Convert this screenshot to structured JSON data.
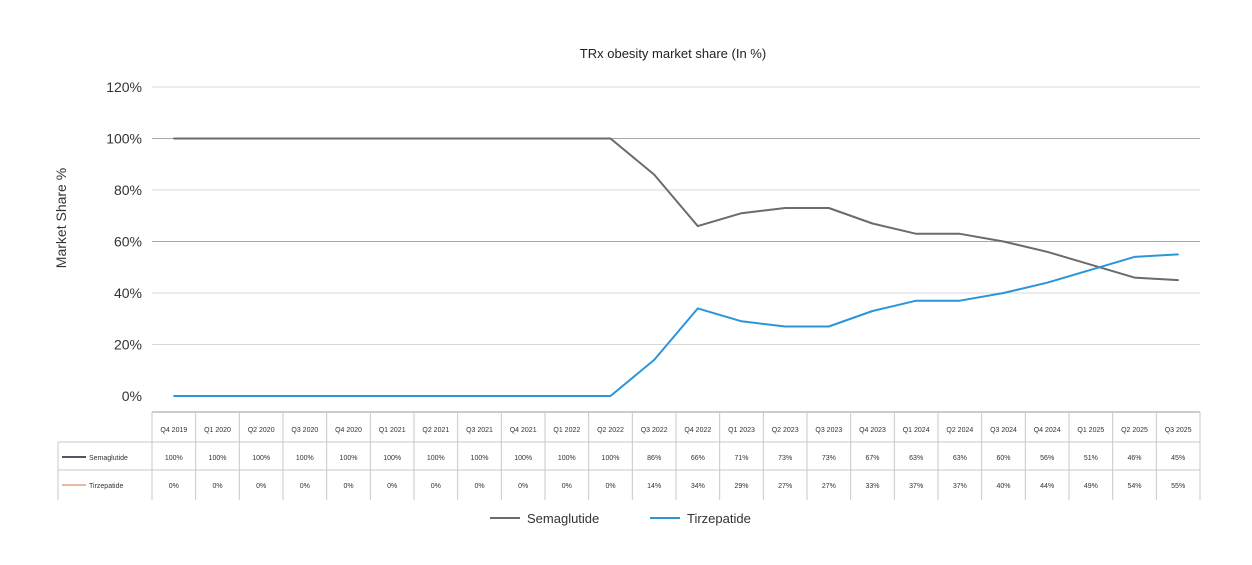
{
  "chart_data": {
    "type": "line",
    "title": "TRx obesity market share (In %)",
    "ylabel": "Market Share %",
    "xlabel": "",
    "ylim": [
      0,
      120
    ],
    "yticks": [
      "0%",
      "20%",
      "40%",
      "60%",
      "80%",
      "100%",
      "120%"
    ],
    "yticks_values": [
      0,
      20,
      40,
      60,
      80,
      100,
      120
    ],
    "grid": true,
    "legend_position": "bottom",
    "categories": [
      "Q4 2019",
      "Q1 2020",
      "Q2 2020",
      "Q3 2020",
      "Q4 2020",
      "Q1 2021",
      "Q2 2021",
      "Q3 2021",
      "Q4 2021",
      "Q1 2022",
      "Q2 2022",
      "Q3 2022",
      "Q4 2022",
      "Q1 2023",
      "Q2 2023",
      "Q3 2023",
      "Q4 2023",
      "Q1 2024",
      "Q2 2024",
      "Q3 2024",
      "Q4 2024",
      "Q1 2025",
      "Q2 2025",
      "Q3 2025"
    ],
    "series": [
      {
        "name": "Semaglutide",
        "color": "#6b6b6b",
        "values": [
          100,
          100,
          100,
          100,
          100,
          100,
          100,
          100,
          100,
          100,
          100,
          86,
          66,
          71,
          73,
          73,
          67,
          63,
          63,
          60,
          56,
          51,
          46,
          45
        ],
        "labels": [
          "100%",
          "100%",
          "100%",
          "100%",
          "100%",
          "100%",
          "100%",
          "100%",
          "100%",
          "100%",
          "100%",
          "86%",
          "66%",
          "71%",
          "73%",
          "73%",
          "67%",
          "63%",
          "63%",
          "60%",
          "56%",
          "51%",
          "46%",
          "45%"
        ],
        "table_key_color": "#1c1c30"
      },
      {
        "name": "Tirzepatide",
        "color": "#2a96d8",
        "values": [
          0,
          0,
          0,
          0,
          0,
          0,
          0,
          0,
          0,
          0,
          0,
          14,
          34,
          29,
          27,
          27,
          33,
          37,
          37,
          40,
          44,
          49,
          54,
          55
        ],
        "labels": [
          "0%",
          "0%",
          "0%",
          "0%",
          "0%",
          "0%",
          "0%",
          "0%",
          "0%",
          "0%",
          "0%",
          "14%",
          "34%",
          "29%",
          "27%",
          "27%",
          "33%",
          "37%",
          "37%",
          "40%",
          "44%",
          "49%",
          "54%",
          "55%"
        ],
        "table_key_color": "#e0a080"
      }
    ]
  }
}
